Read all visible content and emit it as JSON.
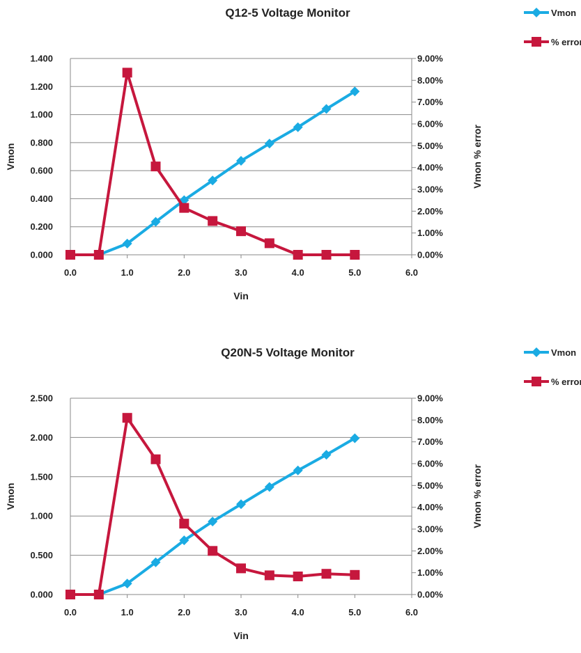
{
  "chart_data": [
    {
      "type": "line",
      "title": "Q12-5 Voltage Monitor",
      "xlabel": "Vin",
      "ylabel": "Vmon",
      "y2label": "Vmon % error",
      "xlim": [
        0,
        6
      ],
      "ylim": [
        0,
        1.4
      ],
      "y2lim": [
        0,
        0.09
      ],
      "x_ticks": [
        "0.0",
        "1.0",
        "2.0",
        "3.0",
        "4.0",
        "5.0",
        "6.0"
      ],
      "y_ticks": [
        "0.000",
        "0.200",
        "0.400",
        "0.600",
        "0.800",
        "1.000",
        "1.200",
        "1.400"
      ],
      "y2_ticks": [
        "0.00%",
        "1.00%",
        "2.00%",
        "3.00%",
        "4.00%",
        "5.00%",
        "6.00%",
        "7.00%",
        "8.00%",
        "9.00%"
      ],
      "grid": "horizontal",
      "legend": "top-right",
      "series": [
        {
          "name": "Vmon",
          "axis": "left",
          "color": "#1aabe3",
          "marker": "diamond",
          "x": [
            0,
            0.5,
            1.0,
            1.5,
            2.0,
            2.5,
            3.0,
            3.5,
            4.0,
            4.5,
            5.0
          ],
          "values": [
            0.0,
            0.0,
            0.08,
            0.235,
            0.39,
            0.53,
            0.67,
            0.793,
            0.91,
            1.04,
            1.165
          ]
        },
        {
          "name": "% error",
          "axis": "right",
          "color": "#c6173d",
          "marker": "square",
          "x": [
            0,
            0.5,
            1.0,
            1.5,
            2.0,
            2.5,
            3.0,
            3.5,
            4.0,
            4.5,
            5.0
          ],
          "values": [
            0.0,
            0.0,
            0.0835,
            0.0405,
            0.0215,
            0.0155,
            0.0108,
            0.0053,
            0.0,
            0.0,
            0.0
          ]
        }
      ]
    },
    {
      "type": "line",
      "title": "Q20N-5 Voltage Monitor",
      "xlabel": "Vin",
      "ylabel": "Vmon",
      "y2label": "Vmon % error",
      "xlim": [
        0,
        6
      ],
      "ylim": [
        0,
        2.5
      ],
      "y2lim": [
        0,
        0.09
      ],
      "x_ticks": [
        "0.0",
        "1.0",
        "2.0",
        "3.0",
        "4.0",
        "5.0",
        "6.0"
      ],
      "y_ticks": [
        "0.000",
        "0.500",
        "1.000",
        "1.500",
        "2.000",
        "2.500"
      ],
      "y2_ticks": [
        "0.00%",
        "1.00%",
        "2.00%",
        "3.00%",
        "4.00%",
        "5.00%",
        "6.00%",
        "7.00%",
        "8.00%",
        "9.00%"
      ],
      "grid": "horizontal",
      "legend": "top-right",
      "series": [
        {
          "name": "Vmon",
          "axis": "left",
          "color": "#1aabe3",
          "marker": "diamond",
          "x": [
            0,
            0.5,
            1.0,
            1.5,
            2.0,
            2.5,
            3.0,
            3.5,
            4.0,
            4.5,
            5.0
          ],
          "values": [
            0.0,
            0.0,
            0.14,
            0.41,
            0.69,
            0.93,
            1.15,
            1.37,
            1.58,
            1.78,
            1.99
          ]
        },
        {
          "name": "% error",
          "axis": "right",
          "color": "#c6173d",
          "marker": "square",
          "x": [
            0,
            0.5,
            1.0,
            1.5,
            2.0,
            2.5,
            3.0,
            3.5,
            4.0,
            4.5,
            5.0
          ],
          "values": [
            0.0,
            0.0,
            0.081,
            0.062,
            0.0325,
            0.02,
            0.012,
            0.0088,
            0.0083,
            0.0095,
            0.009
          ]
        }
      ]
    }
  ]
}
